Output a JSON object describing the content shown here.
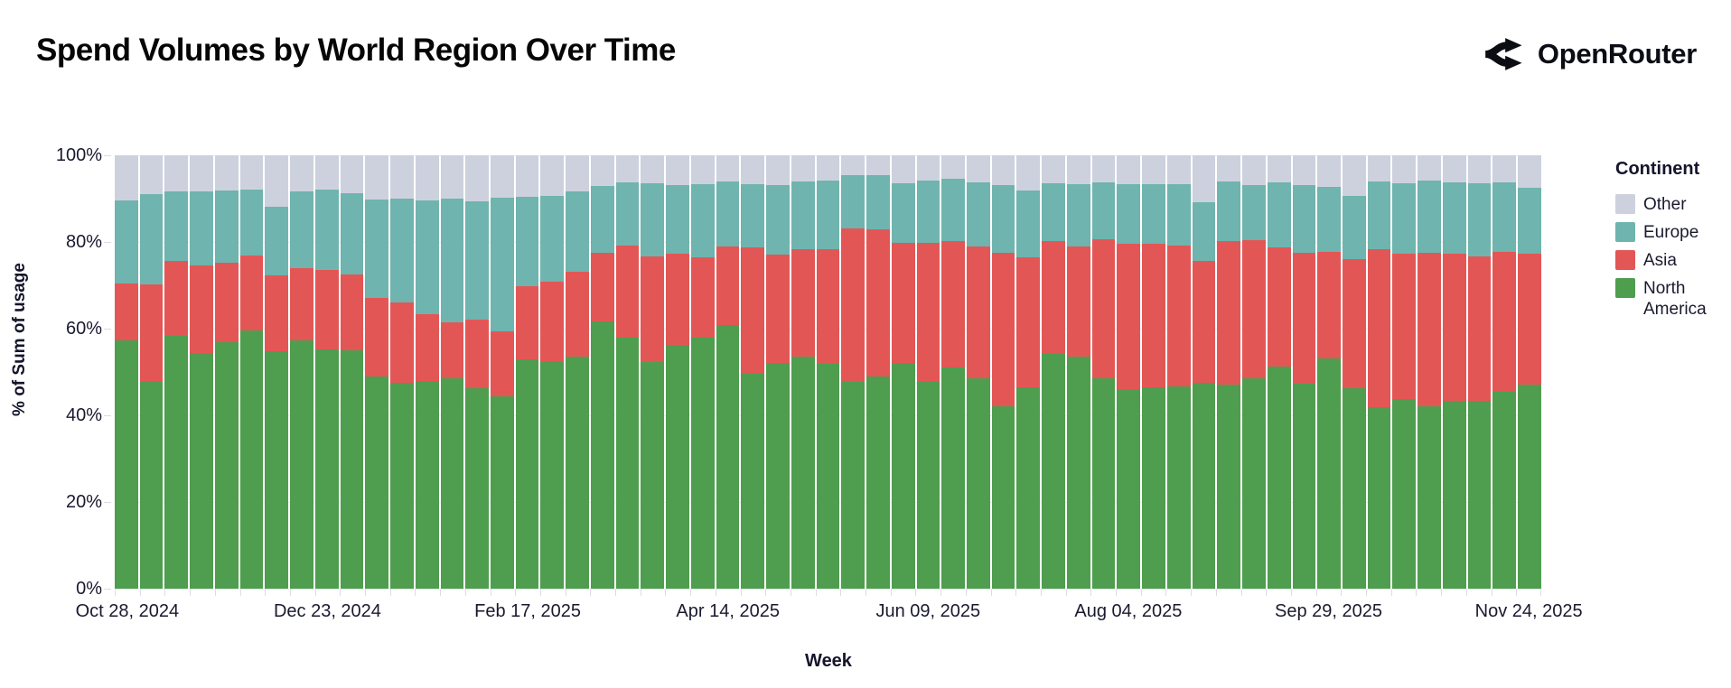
{
  "header": {
    "title": "Spend Volumes by World Region Over Time",
    "brand": "OpenRouter"
  },
  "chart_data": {
    "type": "bar",
    "variant": "stacked-percent",
    "title": "Spend Volumes by World Region Over Time",
    "xlabel": "Week",
    "ylabel": "% of Sum of usage",
    "ylim": [
      0,
      100
    ],
    "grid": "horizontal",
    "y_ticks": [
      {
        "value": 100,
        "label": "100%"
      },
      {
        "value": 80,
        "label": "80%"
      },
      {
        "value": 60,
        "label": "60%"
      },
      {
        "value": 40,
        "label": "40%"
      },
      {
        "value": 20,
        "label": "20%"
      },
      {
        "value": 0,
        "label": "0%"
      }
    ],
    "x_tick_every": 8,
    "x_tick_labels": [
      "Oct 28, 2024",
      "Dec 23, 2024",
      "Feb 17, 2025",
      "Apr 14, 2025",
      "Jun 09, 2025",
      "Aug 04, 2025",
      "Sep 29, 2025",
      "Nov 24, 2025"
    ],
    "categories": [
      "Oct 28, 2024",
      "Nov 04, 2024",
      "Nov 11, 2024",
      "Nov 18, 2024",
      "Nov 25, 2024",
      "Dec 02, 2024",
      "Dec 09, 2024",
      "Dec 16, 2024",
      "Dec 23, 2024",
      "Dec 30, 2024",
      "Jan 06, 2025",
      "Jan 13, 2025",
      "Jan 20, 2025",
      "Jan 27, 2025",
      "Feb 03, 2025",
      "Feb 10, 2025",
      "Feb 17, 2025",
      "Feb 24, 2025",
      "Mar 03, 2025",
      "Mar 10, 2025",
      "Mar 17, 2025",
      "Mar 24, 2025",
      "Mar 31, 2025",
      "Apr 07, 2025",
      "Apr 14, 2025",
      "Apr 21, 2025",
      "Apr 28, 2025",
      "May 05, 2025",
      "May 12, 2025",
      "May 19, 2025",
      "May 26, 2025",
      "Jun 02, 2025",
      "Jun 09, 2025",
      "Jun 16, 2025",
      "Jun 23, 2025",
      "Jun 30, 2025",
      "Jul 07, 2025",
      "Jul 14, 2025",
      "Jul 21, 2025",
      "Jul 28, 2025",
      "Aug 04, 2025",
      "Aug 11, 2025",
      "Aug 18, 2025",
      "Aug 25, 2025",
      "Sep 01, 2025",
      "Sep 08, 2025",
      "Sep 15, 2025",
      "Sep 22, 2025",
      "Sep 29, 2025",
      "Oct 06, 2025",
      "Oct 13, 2025",
      "Oct 20, 2025",
      "Oct 27, 2025",
      "Nov 03, 2025",
      "Nov 10, 2025",
      "Nov 17, 2025",
      "Nov 24, 2025"
    ],
    "stack_order_bottom_to_top": [
      "North America",
      "Asia",
      "Europe",
      "Other"
    ],
    "series": [
      {
        "name": "North America",
        "color": "#4f9d4e",
        "values": [
          57.3,
          47.9,
          58.4,
          54.3,
          56.9,
          59.5,
          54.8,
          57.3,
          55.3,
          55.0,
          49.0,
          47.4,
          47.9,
          48.6,
          46.3,
          44.3,
          52.9,
          52.5,
          53.5,
          61.7,
          57.9,
          52.3,
          56.2,
          57.9,
          60.8,
          49.6,
          52.1,
          53.5,
          51.8,
          47.7,
          49.0,
          52.0,
          47.9,
          51.0,
          48.6,
          42.0,
          46.4,
          54.2,
          53.5,
          48.6,
          46.1,
          46.4,
          46.6,
          47.6,
          47.1,
          48.6,
          51.3,
          47.3,
          53.2,
          46.2,
          41.8,
          43.7,
          42.0,
          43.4,
          43.4,
          45.5,
          47.1
        ]
      },
      {
        "name": "Asia",
        "color": "#e25756",
        "values": [
          13.2,
          22.4,
          17.3,
          20.2,
          18.3,
          17.3,
          17.4,
          16.7,
          18.2,
          17.4,
          18.1,
          18.6,
          15.5,
          12.9,
          15.8,
          15.0,
          16.9,
          18.4,
          19.6,
          15.8,
          21.3,
          24.3,
          21.1,
          18.5,
          18.2,
          29.2,
          24.9,
          24.8,
          26.6,
          35.4,
          33.9,
          27.9,
          31.8,
          29.3,
          30.3,
          35.5,
          30.0,
          26.1,
          25.5,
          32.1,
          33.4,
          33.1,
          32.6,
          28.0,
          33.2,
          31.9,
          27.5,
          30.2,
          24.5,
          29.9,
          36.6,
          33.5,
          35.5,
          33.8,
          33.2,
          32.3,
          30.2
        ]
      },
      {
        "name": "Europe",
        "color": "#6fb4ae",
        "values": [
          19.0,
          20.7,
          15.9,
          17.1,
          16.6,
          15.3,
          16.0,
          17.6,
          18.6,
          18.8,
          22.7,
          24.0,
          26.2,
          28.5,
          27.2,
          30.9,
          20.6,
          19.7,
          18.6,
          15.5,
          14.5,
          16.9,
          15.9,
          17.0,
          15.0,
          14.6,
          16.2,
          15.7,
          15.7,
          12.3,
          12.5,
          13.6,
          14.4,
          14.2,
          14.8,
          15.7,
          15.4,
          13.2,
          14.3,
          13.1,
          13.9,
          13.9,
          14.2,
          13.5,
          13.7,
          12.7,
          14.9,
          15.6,
          15.1,
          14.5,
          15.5,
          16.3,
          16.6,
          16.5,
          17.0,
          15.9,
          15.3
        ]
      },
      {
        "name": "Other",
        "color": "#cdd1de",
        "values": [
          10.5,
          9.0,
          8.4,
          8.4,
          8.2,
          7.9,
          11.8,
          8.4,
          7.9,
          8.8,
          10.2,
          10.0,
          10.4,
          10.0,
          10.7,
          9.8,
          9.6,
          9.4,
          8.3,
          7.0,
          6.3,
          6.5,
          6.8,
          6.6,
          6.0,
          6.6,
          6.8,
          6.0,
          5.9,
          4.6,
          4.6,
          6.5,
          5.9,
          5.5,
          6.3,
          6.8,
          8.2,
          6.5,
          6.7,
          6.2,
          6.6,
          6.6,
          6.6,
          10.9,
          6.0,
          6.8,
          6.3,
          6.9,
          7.2,
          9.4,
          6.1,
          6.5,
          5.9,
          6.3,
          6.4,
          6.3,
          7.4
        ]
      }
    ],
    "legend": {
      "title": "Continent",
      "position": "right",
      "entries_top_to_bottom": [
        "Other",
        "Europe",
        "Asia",
        "North America"
      ]
    }
  }
}
